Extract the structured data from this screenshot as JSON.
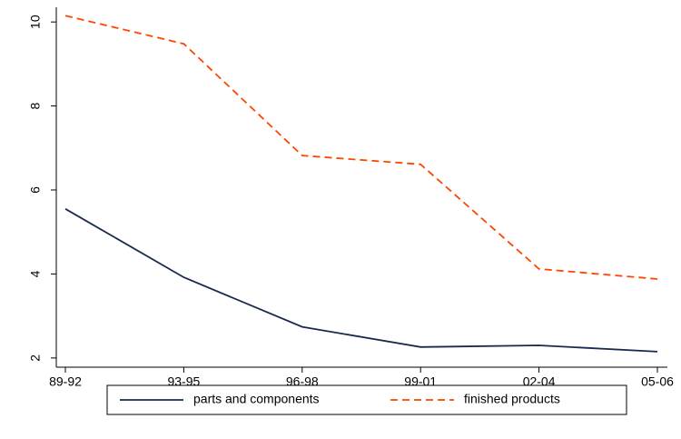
{
  "chart_data": {
    "type": "line",
    "categories": [
      "89-92",
      "93-95",
      "96-98",
      "99-01",
      "02-04",
      "05-06"
    ],
    "series": [
      {
        "name": "parts and components",
        "color": "#1a2a4f",
        "dash": false,
        "values": [
          5.55,
          3.92,
          2.74,
          2.26,
          2.3,
          2.15
        ]
      },
      {
        "name": "finished products",
        "color": "#ff4500",
        "dash": true,
        "values": [
          10.15,
          9.48,
          6.82,
          6.61,
          4.12,
          3.88
        ]
      }
    ],
    "ylim": [
      1.78,
      10.35
    ],
    "yticks": [
      2,
      4,
      6,
      8,
      10
    ],
    "grid": false,
    "legend_position": "bottom"
  }
}
